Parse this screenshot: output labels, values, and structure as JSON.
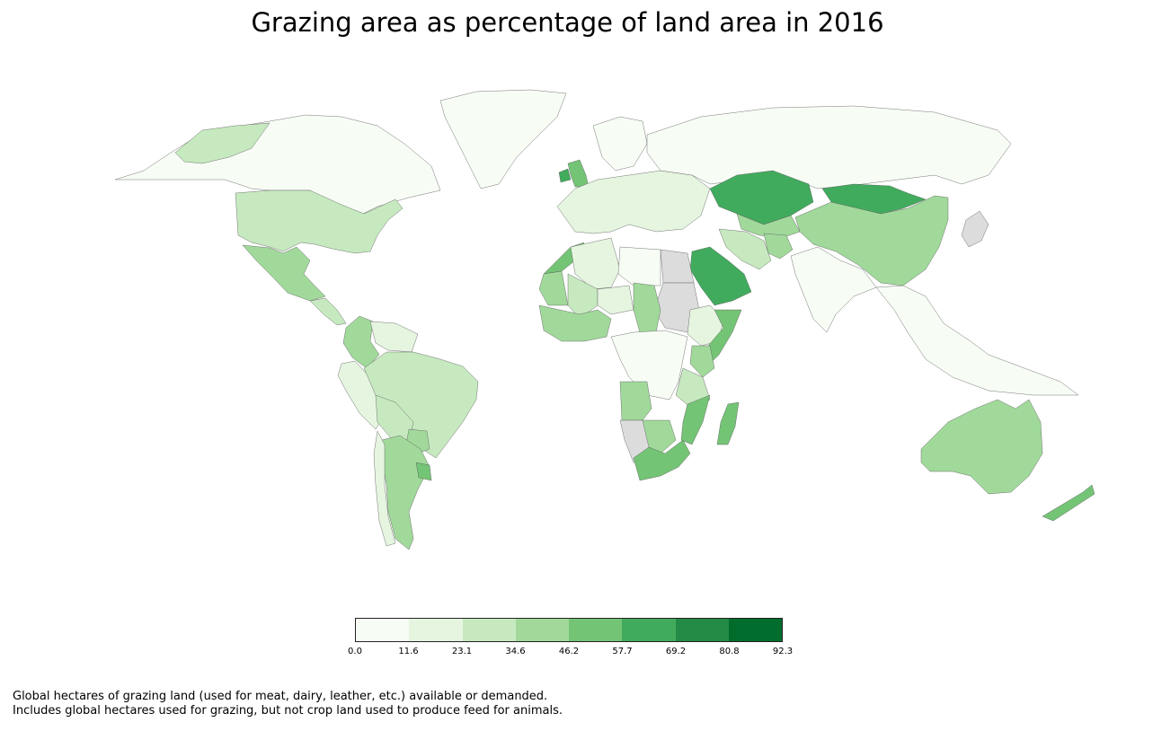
{
  "title": "Grazing area as percentage of land area in 2016",
  "legend": {
    "colors": [
      "#f7fcf5",
      "#e5f5e0",
      "#c7e9c0",
      "#a1d99b",
      "#74c476",
      "#41ab5d",
      "#238b45",
      "#006d2c"
    ],
    "ticks": [
      "0.0",
      "11.6",
      "23.1",
      "34.6",
      "46.2",
      "57.7",
      "69.2",
      "80.8",
      "92.3"
    ]
  },
  "caption": {
    "line1": "Global hectares of grazing land (used for meat, dairy, leather, etc.) available or demanded.",
    "line2": "Includes global hectares used for grazing, but not crop land used to produce feed for animals."
  },
  "no_data_color": "#dcdcdc",
  "chart_data": {
    "type": "choropleth",
    "title": "Grazing area as percentage of land area in 2016",
    "scale": [
      0.0,
      11.6,
      23.1,
      34.6,
      46.2,
      57.7,
      69.2,
      80.8,
      92.3
    ],
    "regions": [
      {
        "name": "Canada",
        "bin": 0
      },
      {
        "name": "Greenland",
        "bin": 0
      },
      {
        "name": "Alaska",
        "bin": 2
      },
      {
        "name": "United States",
        "bin": 2
      },
      {
        "name": "Mexico",
        "bin": 3
      },
      {
        "name": "Central America",
        "bin": 2
      },
      {
        "name": "Colombia",
        "bin": 3
      },
      {
        "name": "Venezuela",
        "bin": 1
      },
      {
        "name": "Peru",
        "bin": 1
      },
      {
        "name": "Brazil",
        "bin": 2
      },
      {
        "name": "Bolivia",
        "bin": 2
      },
      {
        "name": "Paraguay",
        "bin": 3
      },
      {
        "name": "Argentina",
        "bin": 3
      },
      {
        "name": "Chile",
        "bin": 1
      },
      {
        "name": "Uruguay",
        "bin": 4
      },
      {
        "name": "United Kingdom",
        "bin": 4
      },
      {
        "name": "Ireland",
        "bin": 5
      },
      {
        "name": "Scandinavia",
        "bin": 0
      },
      {
        "name": "Europe",
        "bin": 1
      },
      {
        "name": "Russia",
        "bin": 0
      },
      {
        "name": "Kazakhstan",
        "bin": 5
      },
      {
        "name": "Mongolia",
        "bin": 5
      },
      {
        "name": "China",
        "bin": 3
      },
      {
        "name": "Central Asia",
        "bin": 3
      },
      {
        "name": "Iran",
        "bin": 2
      },
      {
        "name": "Afghanistan",
        "bin": 3
      },
      {
        "name": "Saudi Arabia",
        "bin": 5
      },
      {
        "name": "India",
        "bin": 0
      },
      {
        "name": "Southeast Asia",
        "bin": 0
      },
      {
        "name": "Japan",
        "bin": null
      },
      {
        "name": "Morocco",
        "bin": 4
      },
      {
        "name": "Algeria",
        "bin": 1
      },
      {
        "name": "Libya",
        "bin": 0
      },
      {
        "name": "Egypt",
        "bin": null
      },
      {
        "name": "Sudan",
        "bin": null
      },
      {
        "name": "Mauritania",
        "bin": 3
      },
      {
        "name": "Mali",
        "bin": 2
      },
      {
        "name": "Niger",
        "bin": 1
      },
      {
        "name": "Chad",
        "bin": 3
      },
      {
        "name": "West Africa",
        "bin": 3
      },
      {
        "name": "Central Africa",
        "bin": 0
      },
      {
        "name": "Ethiopia",
        "bin": 1
      },
      {
        "name": "Somalia",
        "bin": 4
      },
      {
        "name": "Kenya",
        "bin": 3
      },
      {
        "name": "Tanzania",
        "bin": 2
      },
      {
        "name": "Angola",
        "bin": 3
      },
      {
        "name": "Namibia",
        "bin": null
      },
      {
        "name": "Botswana",
        "bin": 3
      },
      {
        "name": "Mozambique",
        "bin": 4
      },
      {
        "name": "South Africa",
        "bin": 4
      },
      {
        "name": "Madagascar",
        "bin": 4
      },
      {
        "name": "Australia",
        "bin": 3
      },
      {
        "name": "New Zealand",
        "bin": 4
      }
    ]
  }
}
